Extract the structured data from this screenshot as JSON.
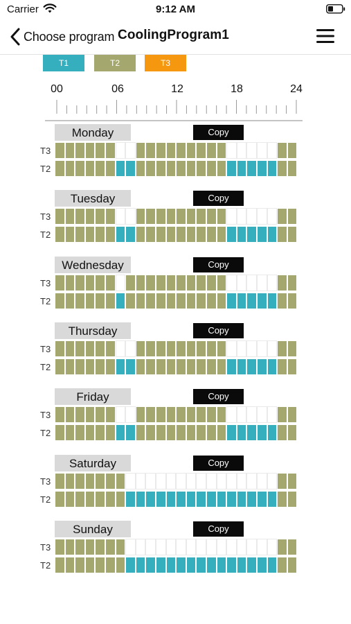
{
  "status_bar": {
    "carrier": "Carrier",
    "time": "9:12 AM"
  },
  "nav": {
    "back_label": "Choose program",
    "title": "CoolingProgram1"
  },
  "legend": [
    {
      "label": "T1",
      "color": "#35aebe"
    },
    {
      "label": "T2",
      "color": "#a4a86e"
    },
    {
      "label": "T3",
      "color": "#f5980f"
    }
  ],
  "axis": {
    "ticks": [
      "00",
      "06",
      "12",
      "18",
      "24"
    ]
  },
  "colors": {
    "t1": "#35aebe",
    "t2": "#a4a86e"
  },
  "row_labels": {
    "upper": "T3",
    "lower": "T2"
  },
  "copy_label": "Copy",
  "days": [
    {
      "name": "Monday",
      "schedule": [
        "T3",
        "T3",
        "T3",
        "T3",
        "T3",
        "T3",
        "T1",
        "T1",
        "T3",
        "T3",
        "T3",
        "T3",
        "T3",
        "T3",
        "T3",
        "T3",
        "T3",
        "T1",
        "T1",
        "T1",
        "T1",
        "T1",
        "T3",
        "T3"
      ]
    },
    {
      "name": "Tuesday",
      "schedule": [
        "T3",
        "T3",
        "T3",
        "T3",
        "T3",
        "T3",
        "T1",
        "T1",
        "T3",
        "T3",
        "T3",
        "T3",
        "T3",
        "T3",
        "T3",
        "T3",
        "T3",
        "T1",
        "T1",
        "T1",
        "T1",
        "T1",
        "T3",
        "T3"
      ]
    },
    {
      "name": "Wednesday",
      "schedule": [
        "T3",
        "T3",
        "T3",
        "T3",
        "T3",
        "T3",
        "T1",
        "T3",
        "T3",
        "T3",
        "T3",
        "T3",
        "T3",
        "T3",
        "T3",
        "T3",
        "T3",
        "T1",
        "T1",
        "T1",
        "T1",
        "T1",
        "T3",
        "T3"
      ]
    },
    {
      "name": "Thursday",
      "schedule": [
        "T3",
        "T3",
        "T3",
        "T3",
        "T3",
        "T3",
        "T1",
        "T1",
        "T3",
        "T3",
        "T3",
        "T3",
        "T3",
        "T3",
        "T3",
        "T3",
        "T3",
        "T1",
        "T1",
        "T1",
        "T1",
        "T1",
        "T3",
        "T3"
      ]
    },
    {
      "name": "Friday",
      "schedule": [
        "T3",
        "T3",
        "T3",
        "T3",
        "T3",
        "T3",
        "T1",
        "T1",
        "T3",
        "T3",
        "T3",
        "T3",
        "T3",
        "T3",
        "T3",
        "T3",
        "T3",
        "T1",
        "T1",
        "T1",
        "T1",
        "T1",
        "T3",
        "T3"
      ]
    },
    {
      "name": "Saturday",
      "schedule": [
        "T3",
        "T3",
        "T3",
        "T3",
        "T3",
        "T3",
        "T3",
        "T1",
        "T1",
        "T1",
        "T1",
        "T1",
        "T1",
        "T1",
        "T1",
        "T1",
        "T1",
        "T1",
        "T1",
        "T1",
        "T1",
        "T1",
        "T3",
        "T3"
      ]
    },
    {
      "name": "Sunday",
      "schedule": [
        "T3",
        "T3",
        "T3",
        "T3",
        "T3",
        "T3",
        "T3",
        "T1",
        "T1",
        "T1",
        "T1",
        "T1",
        "T1",
        "T1",
        "T1",
        "T1",
        "T1",
        "T1",
        "T1",
        "T1",
        "T1",
        "T1",
        "T3",
        "T3"
      ]
    }
  ]
}
